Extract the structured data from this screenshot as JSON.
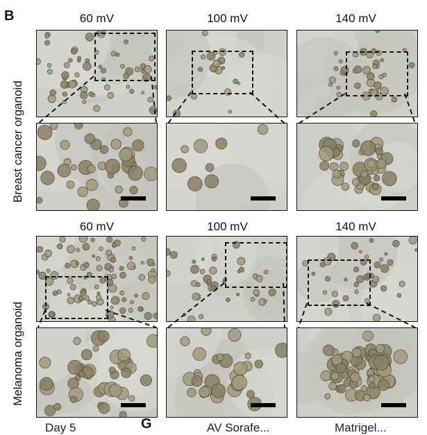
{
  "panel_letter": "B",
  "next_panel_letter": "G",
  "rows": [
    {
      "label": "Breast cancer organoid",
      "columns": [
        "60 mV",
        "100 mV",
        "140 mV"
      ]
    },
    {
      "label": "Melanoma organoid",
      "columns": [
        "60 mV",
        "100 mV",
        "140 mV"
      ]
    }
  ],
  "footer_text": [
    "Day 5",
    "AV Sorafe...",
    "Matrigel..."
  ],
  "colors": {
    "micrograph_bg": "#cfcfc9",
    "cell": "#7a6f52",
    "border": "#111111"
  }
}
